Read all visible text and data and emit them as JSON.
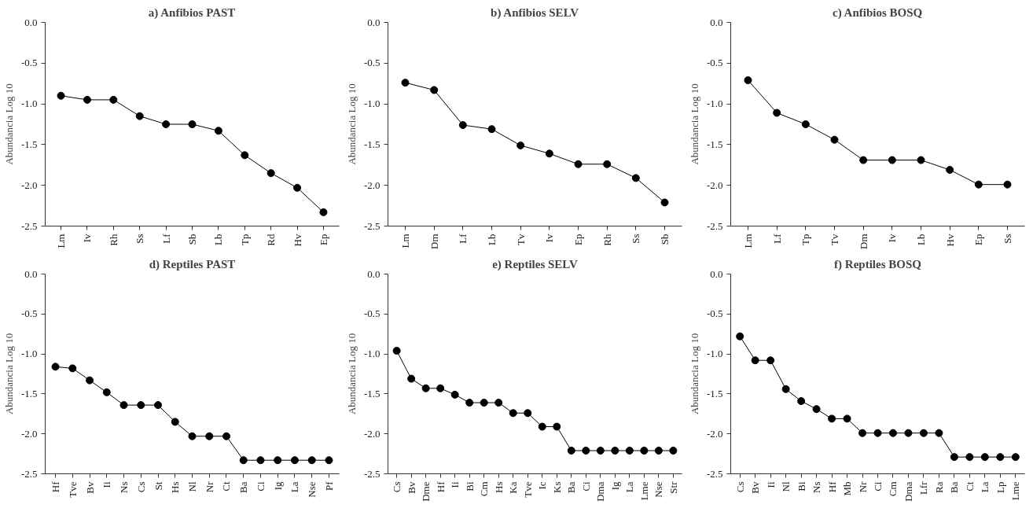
{
  "chart_data": [
    {
      "type": "line",
      "title": "a) Anfibios PAST",
      "ylabel": "Abundancia Log 10",
      "categories": [
        "Lm",
        "Iv",
        "Rh",
        "Ss",
        "Lf",
        "Sb",
        "Lb",
        "Tp",
        "Rd",
        "Hv",
        "Ep"
      ],
      "series": [
        {
          "color": "#000000",
          "values": [
            -0.9,
            -0.95,
            -0.95,
            -1.15,
            -1.25,
            -1.25,
            -1.33,
            -1.63,
            -1.85,
            -2.03,
            -2.33
          ]
        }
      ],
      "ylim": [
        -2.5,
        0
      ],
      "yticks": [
        {
          "value": 0,
          "label": "0.0"
        },
        -0.5,
        {
          "value": -1,
          "label": "-1.0"
        },
        -1.5,
        {
          "value": -2,
          "label": "-2.0"
        },
        -2.5
      ],
      "grid": false,
      "marker": "circle",
      "line_style": "solid"
    },
    {
      "type": "line",
      "title": "b) Anfibios SELV",
      "ylabel": "Abundancia Log 10",
      "categories": [
        "Lm",
        "Dm",
        "Lf",
        "Lb",
        "Tv",
        "Iv",
        "Ep",
        "Rh",
        "Ss",
        "Sb"
      ],
      "series": [
        {
          "color": "#000000",
          "values": [
            -0.74,
            -0.83,
            -1.26,
            -1.31,
            -1.51,
            -1.61,
            -1.74,
            -1.74,
            -1.91,
            -2.21
          ]
        }
      ],
      "ylim": [
        -2.5,
        0
      ],
      "yticks": [
        {
          "value": 0,
          "label": "0.0"
        },
        -0.5,
        {
          "value": -1,
          "label": "-1.0"
        },
        -1.5,
        {
          "value": -2,
          "label": "-2.0"
        },
        -2.5
      ],
      "grid": false,
      "marker": "circle",
      "line_style": "solid"
    },
    {
      "type": "line",
      "title": "c) Anfibios BOSQ",
      "ylabel": "Abundancia Log 10",
      "categories": [
        "Lm",
        "Lf",
        "Tp",
        "Tv",
        "Dm",
        "Iv",
        "Lb",
        "Hv",
        "Ep",
        "Ss"
      ],
      "series": [
        {
          "color": "#000000",
          "values": [
            -0.71,
            -1.11,
            -1.25,
            -1.44,
            -1.69,
            -1.69,
            -1.69,
            -1.81,
            -1.99,
            -1.99
          ]
        }
      ],
      "ylim": [
        -2.5,
        0
      ],
      "yticks": [
        {
          "value": 0,
          "label": "0.0"
        },
        -0.5,
        {
          "value": -1,
          "label": "-1.0"
        },
        -1.5,
        {
          "value": -2,
          "label": "-2.0"
        },
        -2.5
      ],
      "grid": false,
      "marker": "circle",
      "line_style": "solid"
    },
    {
      "type": "line",
      "title": "d) Reptiles PAST",
      "ylabel": "Abundancia Log 10",
      "categories": [
        "Hf",
        "Tve",
        "Bv",
        "Ii",
        "Ns",
        "Cs",
        "St",
        "Hs",
        "Nl",
        "Nr",
        "Ct",
        "Ba",
        "Ci",
        "Ig",
        "La",
        "Nse",
        "Pf"
      ],
      "series": [
        {
          "color": "#000000",
          "values": [
            -1.16,
            -1.18,
            -1.33,
            -1.48,
            -1.64,
            -1.64,
            -1.64,
            -1.85,
            -2.03,
            -2.03,
            -2.03,
            -2.33,
            -2.33,
            -2.33,
            -2.33,
            -2.33,
            -2.33
          ]
        }
      ],
      "ylim": [
        -2.5,
        0
      ],
      "yticks": [
        {
          "value": 0,
          "label": "0.0"
        },
        -0.5,
        {
          "value": -1,
          "label": "-1.0"
        },
        -1.5,
        {
          "value": -2,
          "label": "-2.0"
        },
        -2.5
      ],
      "grid": false,
      "marker": "circle",
      "line_style": "solid"
    },
    {
      "type": "line",
      "title": "e) Reptiles SELV",
      "ylabel": "Abundancia Log 10",
      "categories": [
        "Cs",
        "Bv",
        "Dme",
        "Hf",
        "Ii",
        "Bi",
        "Cm",
        "Hs",
        "Ka",
        "Tve",
        "Ic",
        "Ks",
        "Ba",
        "Ci",
        "Dma",
        "Ig",
        "La",
        "Lme",
        "Nse",
        "Str"
      ],
      "series": [
        {
          "color": "#000000",
          "values": [
            -0.96,
            -1.31,
            -1.43,
            -1.43,
            -1.51,
            -1.61,
            -1.61,
            -1.61,
            -1.74,
            -1.74,
            -1.91,
            -1.91,
            -2.21,
            -2.21,
            -2.21,
            -2.21,
            -2.21,
            -2.21,
            -2.21,
            -2.21
          ]
        }
      ],
      "ylim": [
        -2.5,
        0
      ],
      "yticks": [
        {
          "value": 0,
          "label": "0.0"
        },
        -0.5,
        {
          "value": -1,
          "label": "-1.0"
        },
        -1.5,
        {
          "value": -2,
          "label": "-2.0"
        },
        -2.5
      ],
      "grid": false,
      "marker": "circle",
      "line_style": "solid"
    },
    {
      "type": "line",
      "title": "f) Reptiles BOSQ",
      "ylabel": "Abundancia Log 10",
      "categories": [
        "Cs",
        "Bv",
        "Ii",
        "Nl",
        "Bi",
        "Ns",
        "Hf",
        "Mb",
        "Nr",
        "Ci",
        "Cm",
        "Dma",
        "Lfr",
        "Ra",
        "Ba",
        "Ct",
        "La",
        "Lp",
        "Lme"
      ],
      "series": [
        {
          "color": "#000000",
          "values": [
            -0.78,
            -1.08,
            -1.08,
            -1.44,
            -1.59,
            -1.69,
            -1.81,
            -1.81,
            -1.99,
            -1.99,
            -1.99,
            -1.99,
            -1.99,
            -1.99,
            -2.29,
            -2.29,
            -2.29,
            -2.29,
            -2.29
          ]
        }
      ],
      "ylim": [
        -2.5,
        0
      ],
      "yticks": [
        {
          "value": 0,
          "label": "0.0"
        },
        -0.5,
        {
          "value": -1,
          "label": "-1.0"
        },
        -1.5,
        {
          "value": -2,
          "label": "-2.0"
        },
        -2.5
      ],
      "grid": false,
      "marker": "circle",
      "line_style": "solid"
    }
  ]
}
